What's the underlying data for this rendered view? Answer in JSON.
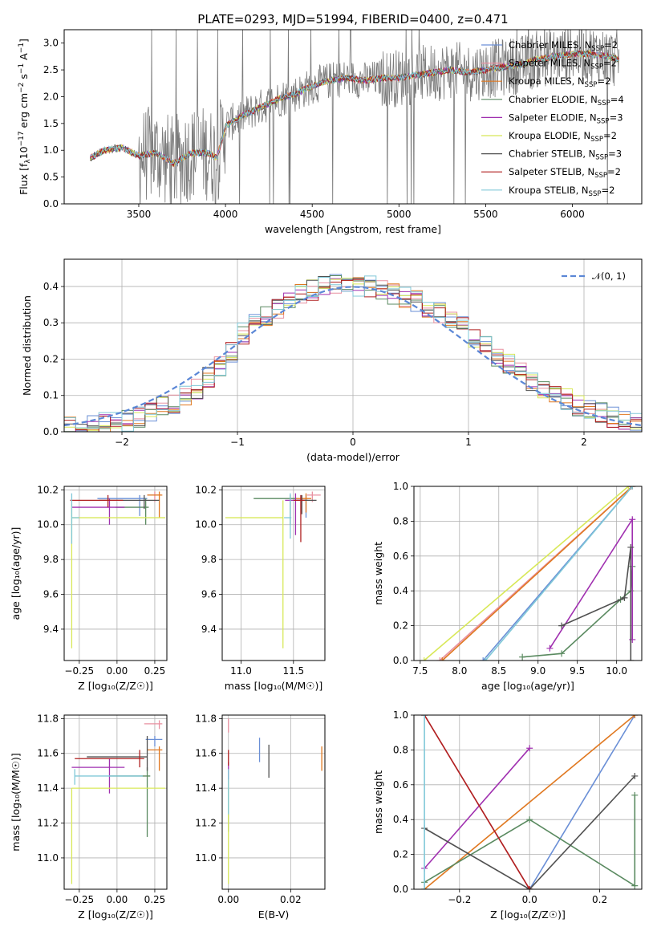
{
  "series_styles": [
    {
      "name": "Chabrier MILES",
      "nssp": "2",
      "color": "#6a8fd6"
    },
    {
      "name": "Salpeter MILES",
      "nssp": "2",
      "color": "#e890a0"
    },
    {
      "name": "Kroupa MILES",
      "nssp": "2",
      "color": "#e07820"
    },
    {
      "name": "Chabrier ELODIE",
      "nssp": "4",
      "color": "#5a8a60"
    },
    {
      "name": "Salpeter ELODIE",
      "nssp": "3",
      "color": "#a030b0"
    },
    {
      "name": "Kroupa ELODIE",
      "nssp": "2",
      "color": "#d8e858"
    },
    {
      "name": "Chabrier STELIB",
      "nssp": "3",
      "color": "#505050"
    },
    {
      "name": "Salpeter STELIB",
      "nssp": "2",
      "color": "#b02020"
    },
    {
      "name": "Kroupa STELIB",
      "nssp": "2",
      "color": "#80c8d8"
    }
  ],
  "chart_data": [
    {
      "id": "spectrum",
      "type": "line",
      "title": "PLATE=0293, MJD=51994, FIBERID=0400, z=0.471",
      "xlabel": "wavelength [Angstrom, rest frame]",
      "ylabel_parts": [
        "Flux [f",
        "λ",
        "10",
        "−17",
        " erg cm",
        "−2",
        " s",
        "−1",
        " A",
        "−1",
        "]"
      ],
      "xlim": [
        3070,
        6400
      ],
      "ylim": [
        0,
        3.25
      ],
      "xticks": [
        3500,
        4000,
        4500,
        5000,
        5500,
        6000
      ],
      "yticks": [
        0.0,
        0.5,
        1.0,
        1.5,
        2.0,
        2.5,
        3.0
      ],
      "x_range_data": [
        3220,
        6270
      ],
      "model_continuum": {
        "x": [
          3220,
          3300,
          3400,
          3500,
          3600,
          3700,
          3800,
          3900,
          3950,
          4000,
          4100,
          4200,
          4300,
          4400,
          4500,
          4600,
          4700,
          4800,
          4900,
          5000,
          5100,
          5200,
          5300,
          5400,
          5500,
          5600,
          5700,
          5800,
          5900,
          6000,
          6100,
          6200,
          6270
        ],
        "y": [
          0.85,
          1.0,
          1.05,
          0.9,
          0.95,
          0.75,
          0.95,
          0.95,
          0.85,
          1.45,
          1.65,
          1.8,
          1.95,
          2.05,
          2.2,
          2.3,
          2.35,
          2.3,
          2.35,
          2.35,
          2.4,
          2.45,
          2.5,
          2.45,
          2.5,
          2.55,
          2.6,
          2.7,
          2.75,
          2.8,
          2.8,
          2.75,
          2.7
        ]
      }
    },
    {
      "id": "residuals",
      "type": "histogram",
      "xlabel": "(data-model)/error",
      "ylabel": "Normed distribution",
      "xlim": [
        -2.5,
        2.5
      ],
      "ylim": [
        0,
        0.475
      ],
      "xticks": [
        -2,
        -1,
        0,
        1,
        2
      ],
      "xtick_labels": [
        "−2",
        "−1",
        "0",
        "1",
        "2"
      ],
      "yticks": [
        0.0,
        0.1,
        0.2,
        0.3,
        0.4
      ],
      "legend": [
        "𝒩(0, 1)"
      ],
      "bin_edges": [
        -2.5,
        -2.4,
        -2.3,
        -2.2,
        -2.1,
        -2.0,
        -1.9,
        -1.8,
        -1.7,
        -1.6,
        -1.5,
        -1.4,
        -1.3,
        -1.2,
        -1.1,
        -1.0,
        -0.9,
        -0.8,
        -0.7,
        -0.6,
        -0.5,
        -0.4,
        -0.3,
        -0.2,
        -0.1,
        0.0,
        0.1,
        0.2,
        0.3,
        0.4,
        0.5,
        0.6,
        0.7,
        0.8,
        0.9,
        1.0,
        1.1,
        1.2,
        1.3,
        1.4,
        1.5,
        1.6,
        1.7,
        1.8,
        1.9,
        2.0,
        2.1,
        2.2,
        2.3,
        2.4,
        2.5
      ],
      "reference_counts": [
        0.02,
        0.02,
        0.02,
        0.025,
        0.025,
        0.03,
        0.04,
        0.05,
        0.07,
        0.08,
        0.1,
        0.12,
        0.15,
        0.18,
        0.22,
        0.27,
        0.3,
        0.32,
        0.34,
        0.36,
        0.38,
        0.39,
        0.4,
        0.41,
        0.4,
        0.4,
        0.4,
        0.39,
        0.38,
        0.37,
        0.36,
        0.34,
        0.33,
        0.31,
        0.29,
        0.26,
        0.24,
        0.21,
        0.19,
        0.16,
        0.14,
        0.12,
        0.1,
        0.09,
        0.07,
        0.06,
        0.05,
        0.04,
        0.035,
        0.03
      ]
    },
    {
      "id": "age-vs-Z",
      "type": "scatter",
      "xlabel": "Z [log₁₀(Z/Z☉)]",
      "ylabel": "age  [log₁₀(age/yr)]",
      "xlim": [
        -0.35,
        0.33
      ],
      "ylim": [
        9.22,
        10.22
      ],
      "xticks": [
        -0.25,
        0.0,
        0.25
      ],
      "xtick_labels": [
        "−0.25",
        "0.00",
        "0.25"
      ],
      "yticks": [
        9.4,
        9.6,
        9.8,
        10.0,
        10.2
      ],
      "points": [
        {
          "s": 0,
          "x": 0.15,
          "y": 10.15,
          "xerr": [
            0.28,
            0.05
          ],
          "yerr": [
            0.1,
            0.02
          ]
        },
        {
          "s": 1,
          "x": 0.25,
          "y": 10.17,
          "xerr": [
            0.05,
            0.04
          ],
          "yerr": [
            0.04,
            0.02
          ]
        },
        {
          "s": 2,
          "x": 0.28,
          "y": 10.17,
          "xerr": [
            0.08,
            0.02
          ],
          "yerr": [
            0.13,
            0.02
          ]
        },
        {
          "s": 3,
          "x": 0.19,
          "y": 10.1,
          "xerr": [
            0.2,
            0.02
          ],
          "yerr": [
            0.1,
            0.05
          ]
        },
        {
          "s": 4,
          "x": -0.05,
          "y": 10.1,
          "xerr": [
            0.25,
            0.1
          ],
          "yerr": [
            0.1,
            0.05
          ]
        },
        {
          "s": 5,
          "x": -0.3,
          "y": 10.04,
          "xerr": [
            0.0,
            0.62
          ],
          "yerr": [
            0.75,
            0.08
          ]
        },
        {
          "s": 6,
          "x": 0.18,
          "y": 10.14,
          "xerr": [
            0.3,
            0.1
          ],
          "yerr": [
            0.05,
            0.03
          ]
        },
        {
          "s": 7,
          "x": -0.06,
          "y": 10.14,
          "xerr": [
            0.25,
            0.1
          ],
          "yerr": [
            0.04,
            0.03
          ]
        },
        {
          "s": 8,
          "x": -0.3,
          "y": 10.04,
          "xerr": [
            0.0,
            0.05
          ],
          "yerr": [
            0.15,
            0.14
          ]
        }
      ]
    },
    {
      "id": "age-vs-mass",
      "type": "scatter",
      "xlabel": "mass [log₁₀(M/M☉)]",
      "ylabel": "",
      "xlim": [
        10.82,
        11.8
      ],
      "ylim": [
        9.22,
        10.22
      ],
      "xticks": [
        11.0,
        11.5
      ],
      "xtick_labels": [
        "11.0",
        "11.5"
      ],
      "yticks": [
        9.4,
        9.6,
        9.8,
        10.0,
        10.2
      ],
      "points": [
        {
          "s": 0,
          "x": 11.62,
          "y": 10.14,
          "xerr": [
            0.06,
            0.02
          ],
          "yerr": [
            0.1,
            0.03
          ]
        },
        {
          "s": 1,
          "x": 11.68,
          "y": 10.17,
          "xerr": [
            0.05,
            0.08
          ],
          "yerr": [
            0.04,
            0.02
          ]
        },
        {
          "s": 2,
          "x": 11.62,
          "y": 10.15,
          "xerr": [
            0.1,
            0.05
          ],
          "yerr": [
            0.08,
            0.03
          ]
        },
        {
          "s": 3,
          "x": 11.47,
          "y": 10.15,
          "xerr": [
            0.35,
            0.05
          ],
          "yerr": [
            0.15,
            0.02
          ]
        },
        {
          "s": 4,
          "x": 11.52,
          "y": 10.14,
          "xerr": [
            0.1,
            0.05
          ],
          "yerr": [
            0.2,
            0.04
          ]
        },
        {
          "s": 5,
          "x": 11.4,
          "y": 10.04,
          "xerr": [
            0.55,
            0.0
          ],
          "yerr": [
            0.75,
            0.1
          ]
        },
        {
          "s": 6,
          "x": 11.58,
          "y": 10.14,
          "xerr": [
            0.05,
            0.14
          ],
          "yerr": [
            0.08,
            0.03
          ]
        },
        {
          "s": 7,
          "x": 11.57,
          "y": 10.14,
          "xerr": [
            0.07,
            0.04
          ],
          "yerr": [
            0.24,
            0.03
          ]
        },
        {
          "s": 8,
          "x": 11.47,
          "y": 10.04,
          "xerr": [
            0.06,
            0.01
          ],
          "yerr": [
            0.12,
            0.14
          ]
        }
      ]
    },
    {
      "id": "weight-vs-age",
      "type": "line",
      "xlabel": "age  [log₁₀(age/yr)]",
      "ylabel": "mass weight",
      "xlim": [
        7.42,
        10.32
      ],
      "ylim": [
        0,
        1
      ],
      "xticks": [
        7.5,
        8.0,
        8.5,
        9.0,
        9.5,
        10.0
      ],
      "xtick_labels": [
        "7.5",
        "8.0",
        "8.5",
        "9.0",
        "9.5",
        "10.0"
      ],
      "yticks": [
        0.0,
        0.2,
        0.4,
        0.6,
        0.8,
        1.0
      ],
      "series": [
        {
          "s": 0,
          "x": [
            8.3,
            10.2
          ],
          "y": [
            0.0,
            1.0
          ]
        },
        {
          "s": 1,
          "x": [
            7.75,
            10.2
          ],
          "y": [
            0.0,
            1.0
          ]
        },
        {
          "s": 2,
          "x": [
            7.78,
            10.2
          ],
          "y": [
            0.0,
            1.0
          ]
        },
        {
          "s": 3,
          "x": [
            8.8,
            9.3,
            10.05,
            10.18,
            10.2
          ],
          "y": [
            0.02,
            0.04,
            0.35,
            0.4,
            0.54
          ]
        },
        {
          "s": 4,
          "x": [
            9.15,
            10.2,
            10.2
          ],
          "y": [
            0.07,
            0.81,
            0.12
          ]
        },
        {
          "s": 5,
          "x": [
            7.55,
            10.15
          ],
          "y": [
            0.0,
            1.0
          ]
        },
        {
          "s": 6,
          "x": [
            9.3,
            10.1,
            10.18,
            10.18
          ],
          "y": [
            0.2,
            0.36,
            0.65,
            0.0
          ]
        },
        {
          "s": 7,
          "x": [
            10.18
          ],
          "y": [
            1.0
          ]
        },
        {
          "s": 8,
          "x": [
            8.33,
            10.2
          ],
          "y": [
            0.0,
            1.0
          ]
        }
      ]
    },
    {
      "id": "mass-vs-Z",
      "type": "scatter",
      "xlabel": "Z [log₁₀(Z/Z☉)]",
      "ylabel": "mass [log₁₀(M/M☉)]",
      "xlim": [
        -0.35,
        0.33
      ],
      "ylim": [
        10.82,
        11.82
      ],
      "xticks": [
        -0.25,
        0.0,
        0.25
      ],
      "xtick_labels": [
        "−0.25",
        "0.00",
        "0.25"
      ],
      "yticks": [
        11.0,
        11.2,
        11.4,
        11.6,
        11.8
      ],
      "points": [
        {
          "s": 0,
          "x": 0.25,
          "y": 11.68,
          "xerr": [
            0.06,
            0.05
          ],
          "yerr": [
            0.04,
            0.02
          ]
        },
        {
          "s": 1,
          "x": 0.28,
          "y": 11.77,
          "xerr": [
            0.1,
            0.02
          ],
          "yerr": [
            0.03,
            0.02
          ]
        },
        {
          "s": 2,
          "x": 0.28,
          "y": 11.62,
          "xerr": [
            0.08,
            0.02
          ],
          "yerr": [
            0.12,
            0.02
          ]
        },
        {
          "s": 3,
          "x": 0.2,
          "y": 11.47,
          "xerr": [
            0.25,
            0.02
          ],
          "yerr": [
            0.35,
            0.05
          ]
        },
        {
          "s": 4,
          "x": -0.05,
          "y": 11.52,
          "xerr": [
            0.25,
            0.1
          ],
          "yerr": [
            0.15,
            0.05
          ]
        },
        {
          "s": 5,
          "x": -0.3,
          "y": 11.4,
          "xerr": [
            0.0,
            0.62
          ],
          "yerr": [
            0.55,
            0.0
          ]
        },
        {
          "s": 6,
          "x": 0.2,
          "y": 11.58,
          "xerr": [
            0.4,
            0.0
          ],
          "yerr": [
            0.08,
            0.12
          ]
        },
        {
          "s": 7,
          "x": 0.15,
          "y": 11.57,
          "xerr": [
            0.43,
            0.03
          ],
          "yerr": [
            0.05,
            0.05
          ]
        },
        {
          "s": 8,
          "x": -0.28,
          "y": 11.47,
          "xerr": [
            0.0,
            0.45
          ],
          "yerr": [
            0.05,
            0.04
          ]
        }
      ]
    },
    {
      "id": "mass-vs-ebv",
      "type": "scatter",
      "xlabel": "E(B-V)",
      "ylabel": "",
      "xlim": [
        -0.002,
        0.031
      ],
      "ylim": [
        10.82,
        11.82
      ],
      "xticks": [
        0.0,
        0.02
      ],
      "xtick_labels": [
        "0.00",
        "0.02"
      ],
      "yticks": [
        11.0,
        11.2,
        11.4,
        11.6,
        11.8
      ],
      "points": [
        {
          "s": 0,
          "x": 0.01,
          "y": 11.62,
          "xerr": [
            0,
            0
          ],
          "yerr": [
            0.07,
            0.07
          ]
        },
        {
          "s": 1,
          "x": 0.0,
          "y": 11.77,
          "xerr": [
            0,
            0
          ],
          "yerr": [
            0.05,
            0.03
          ]
        },
        {
          "s": 2,
          "x": 0.03,
          "y": 11.57,
          "xerr": [
            0,
            0
          ],
          "yerr": [
            0.07,
            0.07
          ]
        },
        {
          "s": 3,
          "x": 0.0,
          "y": 11.45,
          "xerr": [
            0,
            0
          ],
          "yerr": [
            0.3,
            0.06
          ]
        },
        {
          "s": 4,
          "x": 0.0,
          "y": 11.5,
          "xerr": [
            0,
            0
          ],
          "yerr": [
            0.1,
            0.05
          ]
        },
        {
          "s": 5,
          "x": 0.0,
          "y": 11.4,
          "xerr": [
            0,
            0
          ],
          "yerr": [
            0.55,
            0.05
          ]
        },
        {
          "s": 6,
          "x": 0.013,
          "y": 11.58,
          "xerr": [
            0,
            0
          ],
          "yerr": [
            0.12,
            0.07
          ]
        },
        {
          "s": 7,
          "x": 0.0,
          "y": 11.57,
          "xerr": [
            0,
            0
          ],
          "yerr": [
            0.04,
            0.05
          ]
        },
        {
          "s": 8,
          "x": 0.0,
          "y": 11.45,
          "xerr": [
            0,
            0
          ],
          "yerr": [
            0.2,
            0.06
          ]
        }
      ]
    },
    {
      "id": "weight-vs-Z",
      "type": "line",
      "xlabel": "Z [log₁₀(Z/Z☉)]",
      "ylabel": "mass weight",
      "xlim": [
        -0.33,
        0.32
      ],
      "ylim": [
        0,
        1
      ],
      "xticks": [
        -0.2,
        0.0,
        0.2
      ],
      "xtick_labels": [
        "−0.2",
        "0.0",
        "0.2"
      ],
      "yticks": [
        0.0,
        0.2,
        0.4,
        0.6,
        0.8,
        1.0
      ],
      "series": [
        {
          "s": 0,
          "x": [
            0.0,
            0.3
          ],
          "y": [
            0.0,
            1.0
          ]
        },
        {
          "s": 1,
          "x": [
            -0.3,
            0.0
          ],
          "y": [
            1.0,
            0.0
          ]
        },
        {
          "s": 2,
          "x": [
            -0.3,
            0.3
          ],
          "y": [
            0.0,
            1.0
          ]
        },
        {
          "s": 3,
          "x": [
            -0.3,
            0.0,
            0.3,
            0.3
          ],
          "y": [
            0.04,
            0.4,
            0.02,
            0.54
          ]
        },
        {
          "s": 4,
          "x": [
            -0.3,
            0.0
          ],
          "y": [
            0.12,
            0.81
          ]
        },
        {
          "s": 5,
          "x": [],
          "y": []
        },
        {
          "s": 6,
          "x": [
            -0.3,
            0.0,
            0.3
          ],
          "y": [
            0.35,
            0.0,
            0.65
          ]
        },
        {
          "s": 7,
          "x": [
            -0.3,
            0.0
          ],
          "y": [
            1.0,
            0.0
          ]
        },
        {
          "s": 8,
          "x": [
            -0.3,
            -0.3
          ],
          "y": [
            0.0,
            1.0
          ]
        }
      ]
    }
  ]
}
